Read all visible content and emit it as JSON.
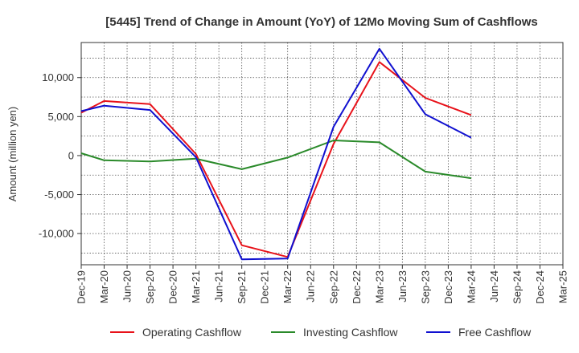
{
  "chart_data": {
    "type": "line",
    "title": "[5445]  Trend of Change in Amount (YoY) of 12Mo Moving Sum of Cashflows",
    "xlabel": "",
    "ylabel": "Amount (million yen)",
    "ylim": [
      -14000,
      14500
    ],
    "yticks": [
      -10000,
      -5000,
      0,
      5000,
      10000
    ],
    "ytick_labels": [
      "-10,000",
      "-5,000",
      "0",
      "5,000",
      "10,000"
    ],
    "categories": [
      "Dec-19",
      "Mar-20",
      "Jun-20",
      "Sep-20",
      "Dec-20",
      "Mar-21",
      "Jun-21",
      "Sep-21",
      "Dec-21",
      "Mar-22",
      "Jun-22",
      "Sep-22",
      "Dec-22",
      "Mar-23",
      "Jun-23",
      "Sep-23",
      "Dec-23",
      "Mar-24",
      "Jun-24",
      "Sep-24",
      "Dec-24",
      "Mar-25"
    ],
    "grid": true,
    "legend_position": "bottom",
    "series": [
      {
        "name": "Operating Cashflow",
        "color": "#e8121a",
        "values": [
          5500,
          7000,
          null,
          6600,
          null,
          200,
          null,
          -11500,
          null,
          -13000,
          null,
          1500,
          null,
          12000,
          null,
          7400,
          null,
          5200,
          null,
          null,
          null,
          null
        ]
      },
      {
        "name": "Investing Cashflow",
        "color": "#2a8a2a",
        "values": [
          300,
          -600,
          null,
          -750,
          null,
          -400,
          null,
          -1750,
          null,
          -250,
          null,
          1950,
          null,
          1700,
          null,
          -2050,
          null,
          -2900,
          null,
          null,
          null,
          null
        ]
      },
      {
        "name": "Free Cashflow",
        "color": "#1010d0",
        "values": [
          5700,
          6400,
          null,
          5850,
          null,
          -200,
          null,
          -13300,
          null,
          -13200,
          null,
          3700,
          null,
          13700,
          null,
          5300,
          null,
          2300,
          null,
          null,
          null,
          null
        ]
      }
    ]
  }
}
